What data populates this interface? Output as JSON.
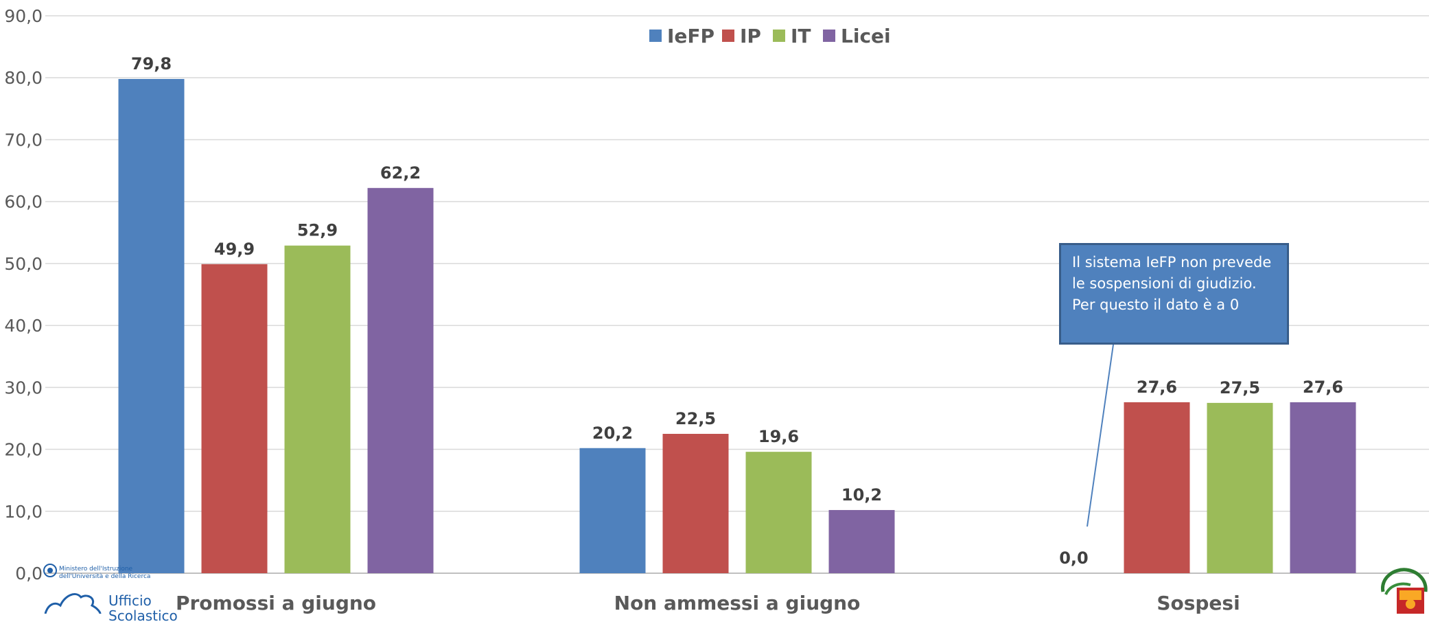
{
  "chart_data": {
    "type": "bar",
    "categories": [
      "Promossi a giugno",
      "Non ammessi a giugno",
      "Sospesi"
    ],
    "series": [
      {
        "name": "IeFP",
        "color": "#4f81bd",
        "values": [
          79.8,
          20.2,
          0.0
        ],
        "labels": [
          "79,8",
          "20,2",
          "0,0"
        ]
      },
      {
        "name": "IP",
        "color": "#c0504d",
        "values": [
          49.9,
          22.5,
          27.6
        ],
        "labels": [
          "49,9",
          "22,5",
          "27,6"
        ]
      },
      {
        "name": "IT",
        "color": "#9bbb59",
        "values": [
          52.9,
          19.6,
          27.5
        ],
        "labels": [
          "52,9",
          "19,6",
          "27,5"
        ]
      },
      {
        "name": "Licei",
        "color": "#8064a2",
        "values": [
          62.2,
          10.2,
          27.6
        ],
        "labels": [
          "62,2",
          "10,2",
          "27,6"
        ]
      }
    ],
    "ylim": [
      0,
      90
    ],
    "yticks": [
      "0,0",
      "10,0",
      "20,0",
      "30,0",
      "40,0",
      "50,0",
      "60,0",
      "70,0",
      "80,0",
      "90,0"
    ],
    "grid": true,
    "legend": "top-center",
    "annotation": {
      "lines": [
        "Il sistema IeFP non prevede",
        "le sospensioni di giudizio.",
        "Per questo il dato è a 0"
      ]
    }
  },
  "logos": {
    "left_line1": "Ministero dell'Istruzione",
    "left_line2": "dell'Università e della Ricerca",
    "left_name": "Ufficio Scolastico"
  }
}
